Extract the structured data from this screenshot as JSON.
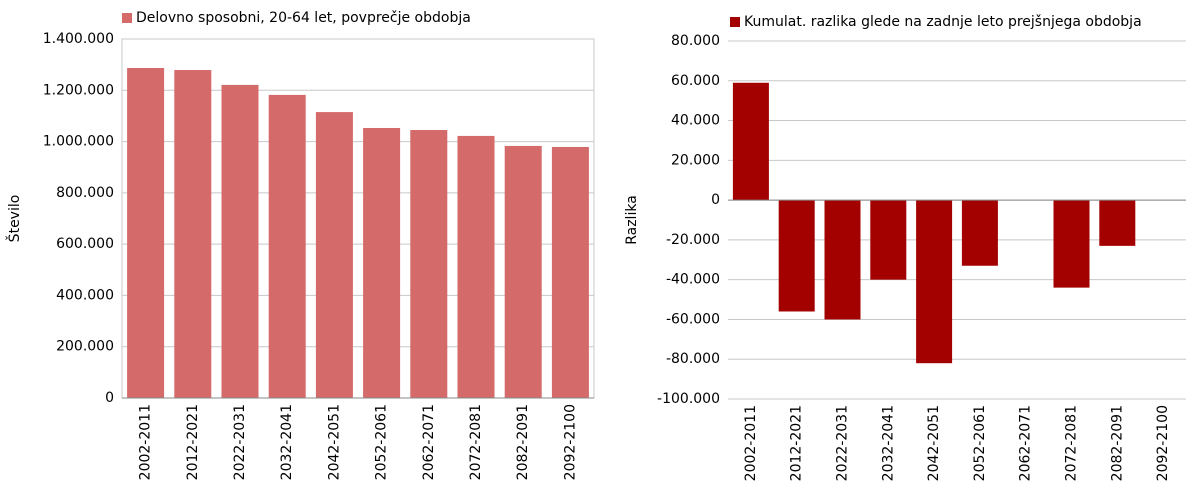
{
  "chart_data": [
    {
      "type": "bar",
      "categories": [
        "2002-2011",
        "2012-2021",
        "2022-2031",
        "2032-2041",
        "2042-2051",
        "2052-2061",
        "2062-2071",
        "2072-2081",
        "2082-2091",
        "2092-2100"
      ],
      "series": [
        {
          "name": "Delovno sposobni, 20-64 let, povprečje obdobja",
          "color": "#d46a6a",
          "values": [
            1287000,
            1279000,
            1221000,
            1182000,
            1115000,
            1053000,
            1045000,
            1022000,
            983000,
            979000
          ]
        }
      ],
      "ylabel": "Število",
      "ylim": [
        0,
        1400000
      ],
      "yticks": [
        0,
        {
          "value": 200000,
          "label": "200.000"
        },
        {
          "value": 400000,
          "label": "400.000"
        },
        {
          "value": 600000,
          "label": "600.000"
        },
        {
          "value": 800000,
          "label": "800.000"
        },
        {
          "value": 1000000,
          "label": "1.000.000"
        },
        {
          "value": 1200000,
          "label": "1.200.000"
        },
        {
          "value": 1400000,
          "label": "1.400.000"
        }
      ],
      "grid": true,
      "legend": "top"
    },
    {
      "type": "bar",
      "categories": [
        "2002-2011",
        "2012-2021",
        "2022-2031",
        "2032-2041",
        "2042-2051",
        "2052-2061",
        "2062-2071",
        "2072-2081",
        "2082-2091",
        "2092-2100"
      ],
      "series": [
        {
          "name": "Kumulat. razlika glede na zadnje leto prejšnjega obdobja",
          "color": "#a30000",
          "values": [
            59000,
            -56000,
            -60000,
            -40000,
            -82000,
            -33000,
            0,
            -44000,
            -23000,
            0
          ]
        }
      ],
      "ylabel": "Razlika",
      "ylim": [
        -100000,
        80000
      ],
      "yticks": [
        {
          "value": -100000,
          "label": "-100.000"
        },
        {
          "value": -80000,
          "label": "-80.000"
        },
        {
          "value": -60000,
          "label": "-60.000"
        },
        {
          "value": -40000,
          "label": "-40.000"
        },
        {
          "value": -20000,
          "label": "-20.000"
        },
        0,
        {
          "value": 20000,
          "label": "20.000"
        },
        {
          "value": 40000,
          "label": "40.000"
        },
        {
          "value": 60000,
          "label": "60.000"
        },
        {
          "value": 80000,
          "label": "80.000"
        }
      ],
      "grid": true,
      "legend": "top"
    }
  ]
}
